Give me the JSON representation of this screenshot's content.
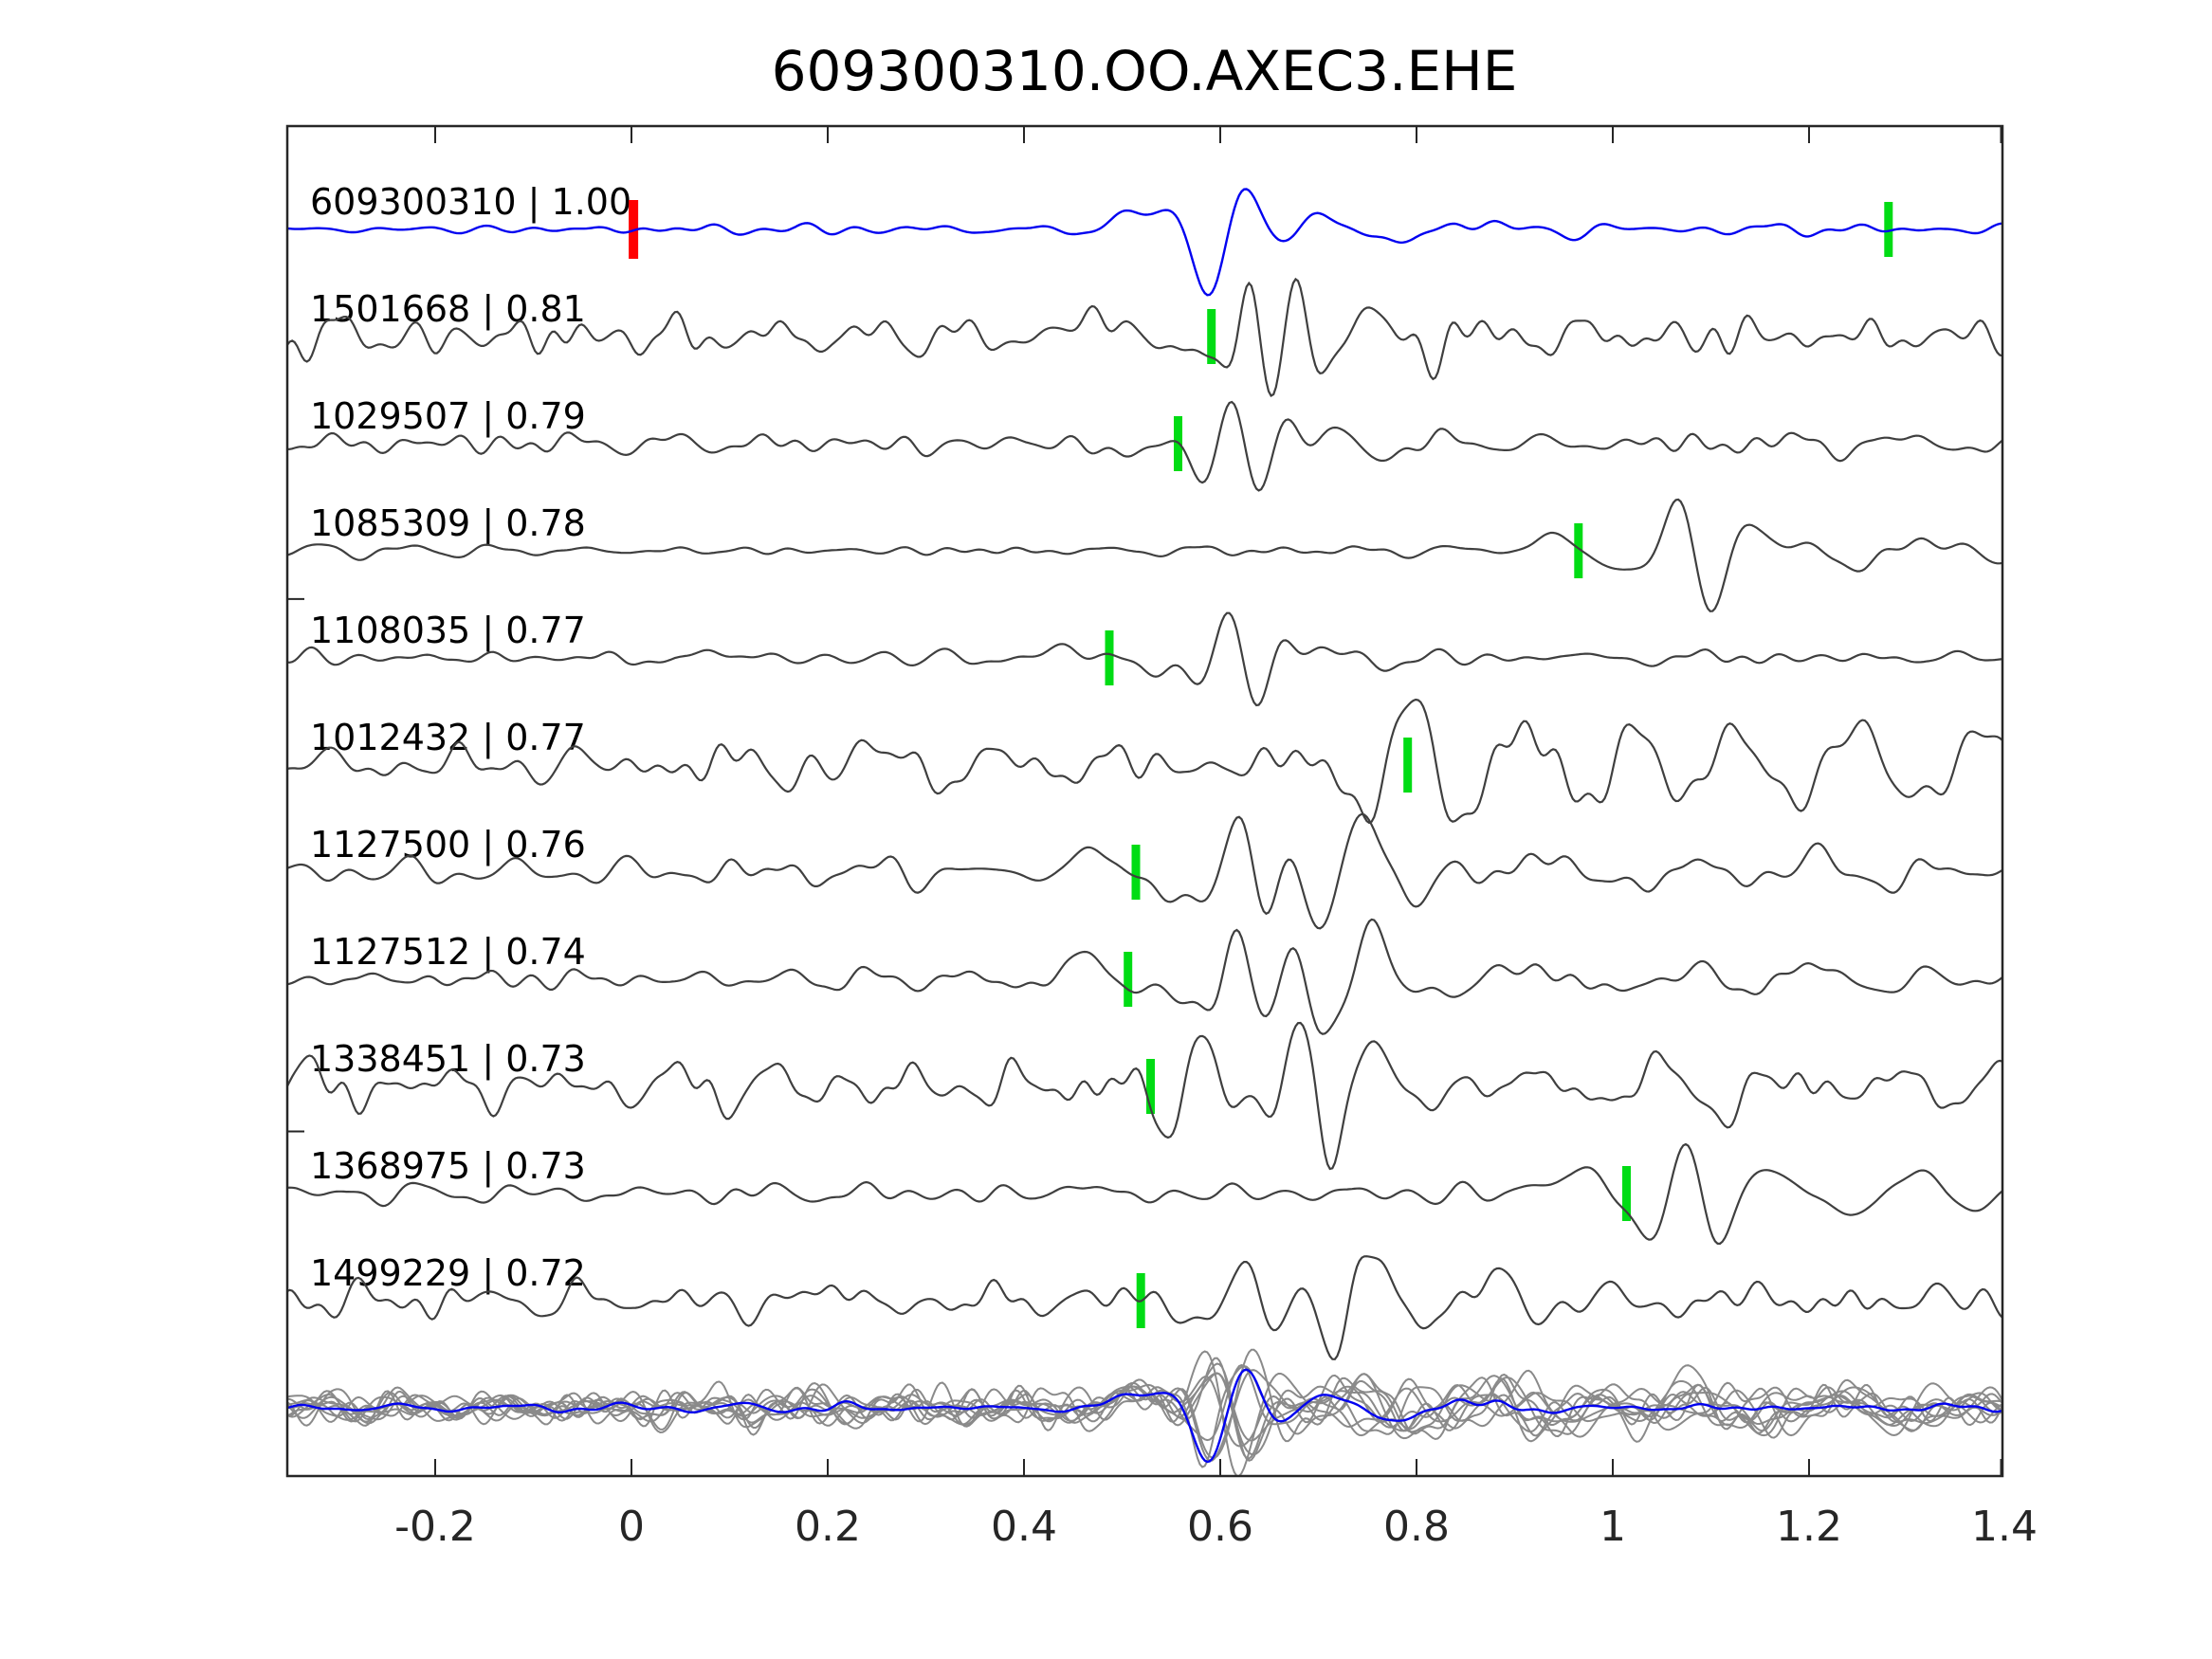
{
  "chart_data": {
    "type": "line",
    "title": "609300310.OO.AXEC3.EHE",
    "xlabel": "",
    "ylabel": "",
    "xlim": [
      -0.35,
      1.4
    ],
    "grid": false,
    "x_ticks": {
      "values": [
        -0.2,
        0,
        0.2,
        0.4,
        0.6,
        0.8,
        1.0,
        1.2,
        1.4
      ],
      "labels": [
        "-0.2",
        "0",
        "0.2",
        "0.4",
        "0.6",
        "0.8",
        "1",
        "1.2",
        "1.4"
      ]
    },
    "y_tick_stub_rows": [
      3.45,
      8.42
    ],
    "colors": {
      "template": "#0202f0",
      "trace": "#3f3f3f",
      "overlay_trace": "#8a8a8a",
      "pick": "#00dc14",
      "template_pick": "#ff0000",
      "axis": "#262626",
      "text": "#000000"
    },
    "traces": [
      {
        "id": "609300310",
        "cc": "1.00",
        "label": "609300310 | 1.00",
        "is_template": true,
        "picks": [
          {
            "t": 0.002,
            "color": "template_pick"
          },
          {
            "t": 1.281,
            "color": "pick"
          }
        ],
        "synth": {
          "seed": 7,
          "noise": 2.6,
          "fband": [
            8,
            30
          ],
          "bursts": [
            {
              "t": 0.515,
              "a": 20,
              "f": 5.5,
              "w": 0.05,
              "p": 0
            },
            {
              "t": 0.6065,
              "a": -66,
              "f": 11.6,
              "w": 0.05,
              "p": 0.499
            },
            {
              "t": 0.59,
              "a": -10,
              "f": 3,
              "w": 0.05,
              "p": 0
            },
            {
              "t": 0.73,
              "a": 15,
              "f": 6.5,
              "w": 0.09,
              "p": 0.4
            },
            {
              "t": 0.87,
              "a": 7,
              "f": 7,
              "w": 0.09,
              "p": 0
            }
          ]
        }
      },
      {
        "id": "1501668",
        "cc": "0.81",
        "label": "1501668 | 0.81",
        "picks": [
          {
            "t": 0.591,
            "color": "pick"
          }
        ],
        "synth": {
          "seed": 101,
          "noise": 9.5,
          "fband": [
            9,
            40
          ],
          "env": [
            {
              "t": 1.15,
              "w": 0.35,
              "g": 0.3
            }
          ],
          "bursts": [
            {
              "t": -0.2,
              "a": -20,
              "f": 14,
              "w": 0.035,
              "p": 0
            },
            {
              "t": 0.47,
              "a": 24,
              "f": 6,
              "w": 0.05,
              "p": 0
            },
            {
              "t": 0.578,
              "a": -26,
              "f": 6.5,
              "w": 0.045,
              "p": 0
            },
            {
              "t": 0.652,
              "a": 58,
              "f": 19,
              "w": 0.05,
              "p": 0.95
            },
            {
              "t": 0.775,
              "a": 20,
              "f": 8.5,
              "w": 0.08,
              "p": 0.3
            },
            {
              "t": 0.99,
              "a": 10,
              "f": 9,
              "w": 0.1,
              "p": 0
            }
          ]
        }
      },
      {
        "id": "1029507",
        "cc": "0.79",
        "label": "1029507 | 0.79",
        "picks": [
          {
            "t": 0.557,
            "color": "pick"
          }
        ],
        "synth": {
          "seed": 33,
          "noise": 4.5,
          "fband": [
            8,
            35
          ],
          "bursts": [
            {
              "t": 0.3,
              "a": -8,
              "f": 9,
              "w": 0.05,
              "p": 0
            },
            {
              "t": 0.5,
              "a": -10,
              "f": 5,
              "w": 0.05,
              "p": 0
            },
            {
              "t": 0.575,
              "a": -16,
              "f": 6,
              "w": 0.035,
              "p": 0
            },
            {
              "t": 0.625,
              "a": 55,
              "f": 17,
              "w": 0.05,
              "p": 0.5
            },
            {
              "t": 0.73,
              "a": 18,
              "f": 8,
              "w": 0.08,
              "p": 0.4
            },
            {
              "t": 1.3,
              "a": 10,
              "f": 9,
              "w": 0.12,
              "p": 0
            }
          ]
        }
      },
      {
        "id": "1085309",
        "cc": "0.78",
        "label": "1085309 | 0.78",
        "picks": [
          {
            "t": 0.965,
            "color": "pick"
          }
        ],
        "synth": {
          "seed": 44,
          "noise": 3.2,
          "fband": [
            8,
            30
          ],
          "env": [
            {
              "t": 1.3,
              "w": 0.3,
              "g": 0.5
            }
          ],
          "bursts": [
            {
              "t": 0.93,
              "a": 10,
              "f": 4,
              "w": 0.06,
              "p": 0
            },
            {
              "t": 1.0,
              "a": -12,
              "f": 5,
              "w": 0.05,
              "p": 0
            },
            {
              "t": 1.085,
              "a": 62,
              "f": 13,
              "w": 0.05,
              "p": 0.5
            },
            {
              "t": 1.19,
              "a": 22,
              "f": 7.5,
              "w": 0.09,
              "p": 0.4
            },
            {
              "t": 1.34,
              "a": 12,
              "f": 9,
              "w": 0.1,
              "p": 0
            }
          ]
        }
      },
      {
        "id": "1108035",
        "cc": "0.77",
        "label": "1108035 | 0.77",
        "picks": [
          {
            "t": 0.487,
            "color": "pick"
          }
        ],
        "synth": {
          "seed": 55,
          "noise": 4.5,
          "fband": [
            8,
            35
          ],
          "bursts": [
            {
              "t": 0.1,
              "a": 6,
              "f": 6,
              "w": 0.08,
              "p": 0
            },
            {
              "t": 0.45,
              "a": 8,
              "f": 5,
              "w": 0.06,
              "p": 0
            },
            {
              "t": 0.54,
              "a": -20,
              "f": 6,
              "w": 0.045,
              "p": 0
            },
            {
              "t": 0.622,
              "a": 54,
              "f": 16,
              "w": 0.05,
              "p": 0.5
            },
            {
              "t": 0.73,
              "a": 16,
              "f": 8,
              "w": 0.08,
              "p": 0.3
            },
            {
              "t": 0.95,
              "a": 7,
              "f": 8,
              "w": 0.12,
              "p": 0
            }
          ]
        }
      },
      {
        "id": "1012432",
        "cc": "0.77",
        "label": "1012432 | 0.77",
        "picks": [
          {
            "t": 0.791,
            "color": "pick"
          }
        ],
        "synth": {
          "seed": 66,
          "noise": 10,
          "fband": [
            7,
            35
          ],
          "env": [
            {
              "t": 1.0,
              "w": 0.5,
              "g": 0.35
            }
          ],
          "bursts": [
            {
              "t": 0.25,
              "a": 12,
              "f": 6,
              "w": 0.1,
              "p": 0
            },
            {
              "t": 0.74,
              "a": -18,
              "f": 6,
              "w": 0.05,
              "p": 0
            },
            {
              "t": 0.81,
              "a": 58,
              "f": 11,
              "w": 0.06,
              "p": 0.3
            },
            {
              "t": 0.95,
              "a": 45,
              "f": 9,
              "w": 0.12,
              "p": 0.7
            },
            {
              "t": 1.12,
              "a": 38,
              "f": 8.5,
              "w": 0.12,
              "p": 0
            },
            {
              "t": 1.28,
              "a": 34,
              "f": 8,
              "w": 0.12,
              "p": 0.5
            },
            {
              "t": 1.39,
              "a": 25,
              "f": 9,
              "w": 0.06,
              "p": 0
            }
          ]
        }
      },
      {
        "id": "1127500",
        "cc": "0.76",
        "label": "1127500 | 0.76",
        "picks": [
          {
            "t": 0.514,
            "color": "pick"
          }
        ],
        "synth": {
          "seed": 77,
          "noise": 7,
          "fband": [
            8,
            35
          ],
          "bursts": [
            {
              "t": 0.46,
              "a": 22,
              "f": 7,
              "w": 0.05,
              "p": 0
            },
            {
              "t": 0.555,
              "a": -28,
              "f": 6.5,
              "w": 0.04,
              "p": 0
            },
            {
              "t": 0.632,
              "a": 56,
              "f": 16,
              "w": 0.05,
              "p": 0.5
            },
            {
              "t": 0.7,
              "a": -30,
              "f": 8,
              "w": 0.05,
              "p": 0
            },
            {
              "t": 0.75,
              "a": 48,
              "f": 10,
              "w": 0.05,
              "p": 0
            },
            {
              "t": 0.95,
              "a": 16,
              "f": 5.5,
              "w": 0.15,
              "p": 0.3
            },
            {
              "t": 1.2,
              "a": 18,
              "f": 7,
              "w": 0.09,
              "p": 0
            }
          ]
        }
      },
      {
        "id": "1127512",
        "cc": "0.74",
        "label": "1127512 | 0.74",
        "picks": [
          {
            "t": 0.506,
            "color": "pick"
          }
        ],
        "synth": {
          "seed": 88,
          "noise": 6.5,
          "fband": [
            8,
            35
          ],
          "bursts": [
            {
              "t": 0.46,
              "a": 22,
              "f": 7,
              "w": 0.05,
              "p": 0
            },
            {
              "t": 0.56,
              "a": -30,
              "f": 6.5,
              "w": 0.04,
              "p": 0
            },
            {
              "t": 0.632,
              "a": 58,
              "f": 16,
              "w": 0.05,
              "p": 0.5
            },
            {
              "t": 0.705,
              "a": -32,
              "f": 8,
              "w": 0.05,
              "p": 0
            },
            {
              "t": 0.755,
              "a": 46,
              "f": 10,
              "w": 0.05,
              "p": 0
            },
            {
              "t": 0.96,
              "a": 14,
              "f": 6,
              "w": 0.15,
              "p": 0.5
            },
            {
              "t": 1.2,
              "a": 16,
              "f": 7,
              "w": 0.09,
              "p": 0
            }
          ]
        }
      },
      {
        "id": "1338451",
        "cc": "0.73",
        "label": "1338451 | 0.73",
        "picks": [
          {
            "t": 0.529,
            "color": "pick"
          }
        ],
        "synth": {
          "seed": 99,
          "noise": 11,
          "fband": [
            8,
            40
          ],
          "env": [
            {
              "t": -0.25,
              "w": 0.2,
              "g": 0.3
            }
          ],
          "bursts": [
            {
              "t": 0.545,
              "a": -30,
              "f": 9,
              "w": 0.035,
              "p": 0
            },
            {
              "t": 0.575,
              "a": 50,
              "f": 12,
              "w": 0.04,
              "p": 0
            },
            {
              "t": 0.682,
              "a": 56,
              "f": 14,
              "w": 0.04,
              "p": 0
            },
            {
              "t": 0.715,
              "a": -34,
              "f": 10,
              "w": 0.04,
              "p": 0
            },
            {
              "t": 0.755,
              "a": 32,
              "f": 9,
              "w": 0.05,
              "p": 0
            },
            {
              "t": 0.9,
              "a": 12,
              "f": 7,
              "w": 0.12,
              "p": 0
            },
            {
              "t": 1.12,
              "a": -22,
              "f": 7,
              "w": 0.06,
              "p": 0
            }
          ]
        }
      },
      {
        "id": "1368975",
        "cc": "0.73",
        "label": "1368975 | 0.73",
        "picks": [
          {
            "t": 1.014,
            "color": "pick"
          }
        ],
        "synth": {
          "seed": 111,
          "noise": 4.5,
          "fband": [
            8,
            30
          ],
          "bursts": [
            {
              "t": 0.45,
              "a": 7,
              "f": 6,
              "w": 0.08,
              "p": 0
            },
            {
              "t": 0.95,
              "a": 18,
              "f": 4,
              "w": 0.07,
              "p": 0
            },
            {
              "t": 1.035,
              "a": -25,
              "f": 6,
              "w": 0.045,
              "p": 0
            },
            {
              "t": 1.09,
              "a": 58,
              "f": 13,
              "w": 0.05,
              "p": 0.5
            },
            {
              "t": 1.19,
              "a": 24,
              "f": 8,
              "w": 0.08,
              "p": 0.4
            },
            {
              "t": 1.31,
              "a": 14,
              "f": 8,
              "w": 0.08,
              "p": 0
            }
          ]
        }
      },
      {
        "id": "1499229",
        "cc": "0.72",
        "label": "1499229 | 0.72",
        "picks": [
          {
            "t": 0.519,
            "color": "pick"
          }
        ],
        "synth": {
          "seed": 122,
          "noise": 9,
          "fband": [
            8,
            38
          ],
          "bursts": [
            {
              "t": 0.2,
              "a": 14,
              "f": 6,
              "w": 0.1,
              "p": 0
            },
            {
              "t": 0.53,
              "a": 14,
              "f": 9,
              "w": 0.03,
              "p": 0
            },
            {
              "t": 0.565,
              "a": -24,
              "f": 7,
              "w": 0.04,
              "p": 0
            },
            {
              "t": 0.642,
              "a": 56,
              "f": 14,
              "w": 0.045,
              "p": 0.5
            },
            {
              "t": 0.715,
              "a": -36,
              "f": 9,
              "w": 0.05,
              "p": 0
            },
            {
              "t": 0.755,
              "a": 46,
              "f": 10,
              "w": 0.045,
              "p": 0
            },
            {
              "t": 0.88,
              "a": 20,
              "f": 7,
              "w": 0.08,
              "p": 0
            },
            {
              "t": 1.15,
              "a": 12,
              "f": 7,
              "w": 0.15,
              "p": 0
            }
          ]
        }
      }
    ],
    "overlay_row": {
      "description": "all detections aligned and stacked in gray with template in blue",
      "count": 10,
      "gray_noise": 7.5,
      "gray_amp_base": 40,
      "gray_amp_spread": 22,
      "blue_scale": 0.82
    }
  }
}
